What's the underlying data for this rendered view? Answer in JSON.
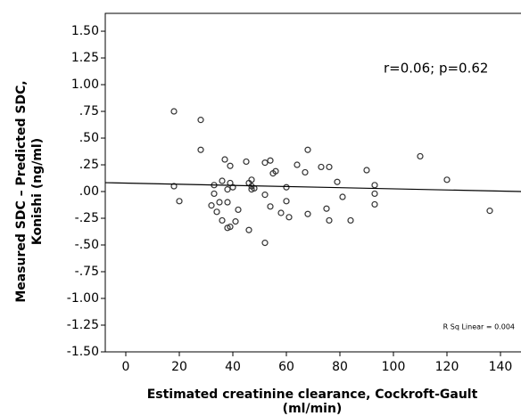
{
  "chart_data": {
    "type": "scatter",
    "x_label": [
      "Estimated creatinine clearance, Cockroft-Gault",
      "(ml/min)"
    ],
    "y_label": [
      "Measured SDC – Predicted SDC,",
      "Konishi (ng/ml)"
    ],
    "annotations": [
      "r=0.06; p=0.62",
      "R Sq Linear = 0.004"
    ],
    "xlim": [
      -7.67,
      147.67
    ],
    "ylim": [
      -1.5,
      1.667
    ],
    "xticks": [
      0,
      20,
      40,
      60,
      80,
      100,
      120,
      140
    ],
    "yticks": [
      {
        "value": 1.5,
        "label": "1.50"
      },
      {
        "value": 1.25,
        "label": "1.25"
      },
      {
        "value": 1.0,
        "label": "1.00"
      },
      {
        "value": 0.75,
        "label": ".75"
      },
      {
        "value": 0.5,
        "label": ".50"
      },
      {
        "value": 0.25,
        "label": ".25"
      },
      {
        "value": 0,
        "label": ".00"
      },
      {
        "value": -0.25,
        "label": "-.25"
      },
      {
        "value": -0.5,
        "label": "-.50"
      },
      {
        "value": -0.75,
        "label": "-.75"
      },
      {
        "value": -1.0,
        "label": "-1.00"
      },
      {
        "value": -1.25,
        "label": "-1.25"
      },
      {
        "value": -1.5,
        "label": "-1.50"
      }
    ],
    "series": [
      {
        "color": "#333333",
        "x": [
          18,
          18,
          20,
          28,
          28,
          32,
          33,
          33,
          34,
          35,
          36,
          36,
          37,
          38,
          38,
          38,
          39,
          39,
          39,
          40,
          41,
          42,
          45,
          46,
          46,
          47,
          47,
          47,
          48,
          52,
          52,
          52,
          54,
          55,
          56,
          54,
          58,
          60,
          60,
          61,
          64,
          67,
          68,
          68,
          73,
          76,
          75,
          76,
          79,
          81,
          84,
          90,
          93,
          93,
          93,
          110,
          120,
          136
        ],
        "values": [
          0.75,
          0.05,
          -0.09,
          0.67,
          0.39,
          -0.13,
          0.06,
          -0.02,
          -0.19,
          -0.1,
          0.1,
          -0.27,
          0.3,
          0.02,
          -0.1,
          -0.34,
          0.24,
          0.08,
          -0.33,
          0.04,
          -0.28,
          -0.17,
          0.28,
          0.08,
          -0.36,
          0.11,
          0.05,
          0.02,
          0.03,
          0.27,
          -0.03,
          -0.48,
          0.29,
          0.17,
          0.19,
          -0.14,
          -0.2,
          0.04,
          -0.09,
          -0.24,
          0.25,
          0.18,
          0.39,
          -0.21,
          0.23,
          0.23,
          -0.16,
          -0.27,
          0.09,
          -0.05,
          -0.27,
          0.2,
          0.06,
          -0.02,
          -0.12,
          0.33,
          0.11,
          -0.18
        ]
      }
    ],
    "fit_line": {
      "color": "#000000",
      "x": [
        -7.67,
        147.67
      ],
      "values": [
        0.083,
        0.0
      ]
    }
  }
}
